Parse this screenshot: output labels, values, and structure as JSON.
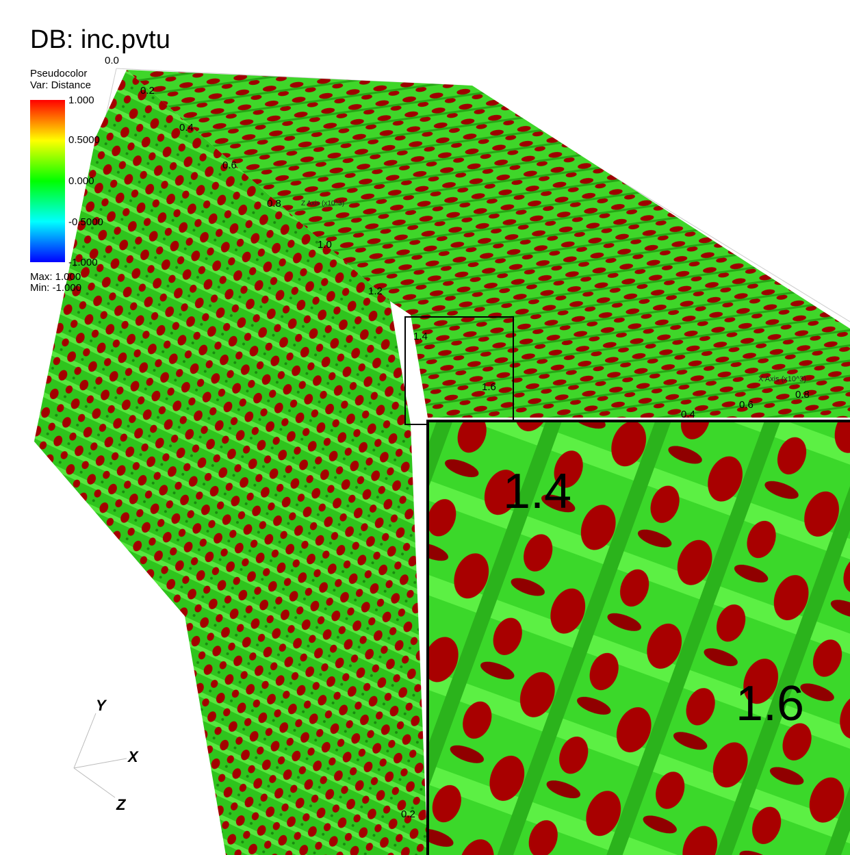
{
  "header": {
    "title": "DB: inc.pvtu"
  },
  "legend": {
    "plot": "Pseudocolor",
    "variable": "Var: Distance",
    "ticks": [
      "1.000",
      "0.5000",
      "0.000",
      "-0.5000",
      "-1.000"
    ],
    "max": "Max: 1.000",
    "min": "Min: -1.000"
  },
  "axes": {
    "z": {
      "title": "Z Axis (x10^3)",
      "ticks": [
        "0.0",
        "0.2",
        "0.4",
        "0.6",
        "0.8",
        "1.0",
        "1.2",
        "1.4",
        "1.6"
      ]
    },
    "x": {
      "title": "X Axis (x10^3)",
      "ticks": [
        "0.4",
        "0.6",
        "0.8"
      ]
    },
    "y": {
      "ticks": [
        "0.2"
      ]
    }
  },
  "triad": {
    "x": "X",
    "y": "Y",
    "z": "Z"
  },
  "inset": {
    "labels": [
      "1.4",
      "1.6"
    ]
  }
}
